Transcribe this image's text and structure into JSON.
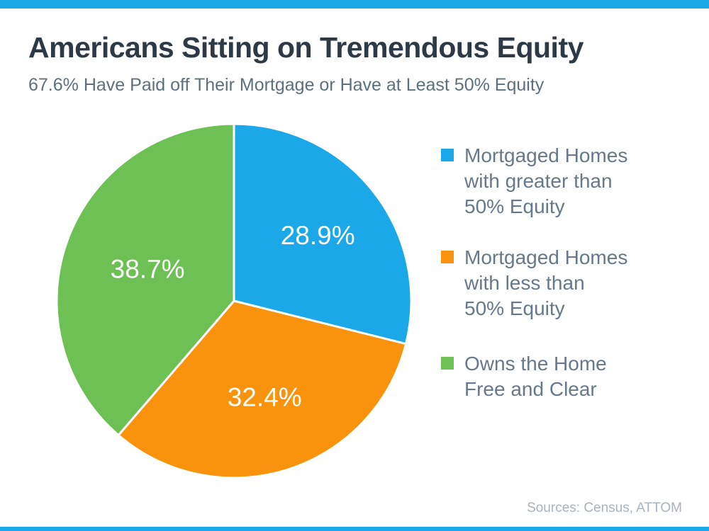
{
  "page": {
    "accent_bar_color": "#1BA8E9",
    "background_color": "#FFFFFF"
  },
  "header": {
    "title": "Americans Sitting on Tremendous Equity",
    "subtitle": "67.6% Have Paid off Their Mortgage or Have at Least 50% Equity"
  },
  "chart_data": {
    "type": "pie",
    "title": "Americans Sitting on Tremendous Equity",
    "subtitle": "67.6% Have Paid off Their Mortgage or Have at Least 50% Equity",
    "start_angle_deg": 0,
    "direction": "clockwise",
    "legend_position": "right",
    "slices": [
      {
        "label": "Mortgaged Homes with greater than 50% Equity",
        "value": 28.9,
        "display": "28.9%",
        "color": "#1BA8E9"
      },
      {
        "label": "Mortgaged Homes with less than 50% Equity",
        "value": 32.4,
        "display": "32.4%",
        "color": "#F9930D"
      },
      {
        "label": "Owns the Home Free and Clear",
        "value": 38.7,
        "display": "38.7%",
        "color": "#6DC054"
      }
    ],
    "source": "Sources: Census, ATTOM"
  },
  "legend": {
    "items": [
      {
        "color": "#1BA8E9",
        "line1": "Mortgaged Homes",
        "line2": "with greater than",
        "line3": "50% Equity"
      },
      {
        "color": "#F9930D",
        "line1": "Mortgaged Homes",
        "line2": "with less than",
        "line3": "50% Equity"
      },
      {
        "color": "#6DC054",
        "line1": "Owns the Home",
        "line2": "Free and Clear"
      }
    ]
  },
  "footer": {
    "source": "Sources: Census, ATTOM"
  },
  "text_colors": {
    "title": "#2D3A45",
    "subtitle": "#5C707E",
    "legend": "#66798C",
    "source": "#A9B3BE",
    "slice_label": "#FFFFFF"
  }
}
